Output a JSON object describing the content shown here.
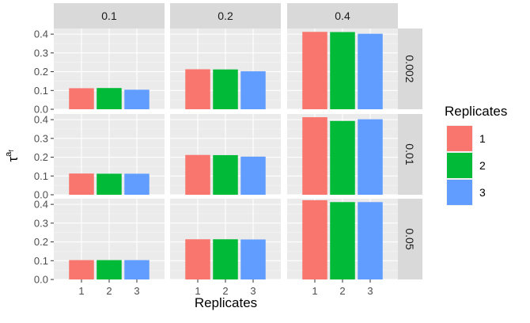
{
  "chart_data": {
    "type": "bar",
    "facet_columns": [
      "0.1",
      "0.2",
      "0.4"
    ],
    "facet_rows": [
      "0.002",
      "0.01",
      "0.05"
    ],
    "categories": [
      "1",
      "2",
      "3"
    ],
    "xlabel": "Replicates",
    "ylabel": "τ",
    "ylabel_superscript": "a",
    "ylabel_sub_superscript": "f",
    "ylim": [
      0,
      0.43
    ],
    "yticks": [
      "0.0",
      "0.1",
      "0.2",
      "0.3",
      "0.4"
    ],
    "grid": true,
    "legend": {
      "title": "Replicates",
      "position": "right",
      "entries": [
        "1",
        "2",
        "3"
      ]
    },
    "colors": [
      "#F8766D",
      "#00BA38",
      "#619CFF"
    ],
    "panels": [
      {
        "row": "0.002",
        "col": "0.1",
        "values": [
          0.112,
          0.113,
          0.104
        ]
      },
      {
        "row": "0.002",
        "col": "0.2",
        "values": [
          0.213,
          0.212,
          0.202
        ]
      },
      {
        "row": "0.002",
        "col": "0.4",
        "values": [
          0.412,
          0.411,
          0.402
        ]
      },
      {
        "row": "0.01",
        "col": "0.1",
        "values": [
          0.113,
          0.112,
          0.112
        ]
      },
      {
        "row": "0.01",
        "col": "0.2",
        "values": [
          0.212,
          0.211,
          0.203
        ]
      },
      {
        "row": "0.01",
        "col": "0.4",
        "values": [
          0.413,
          0.393,
          0.402
        ]
      },
      {
        "row": "0.05",
        "col": "0.1",
        "values": [
          0.103,
          0.103,
          0.103
        ]
      },
      {
        "row": "0.05",
        "col": "0.2",
        "values": [
          0.214,
          0.214,
          0.213
        ]
      },
      {
        "row": "0.05",
        "col": "0.4",
        "values": [
          0.422,
          0.412,
          0.412
        ]
      }
    ]
  }
}
